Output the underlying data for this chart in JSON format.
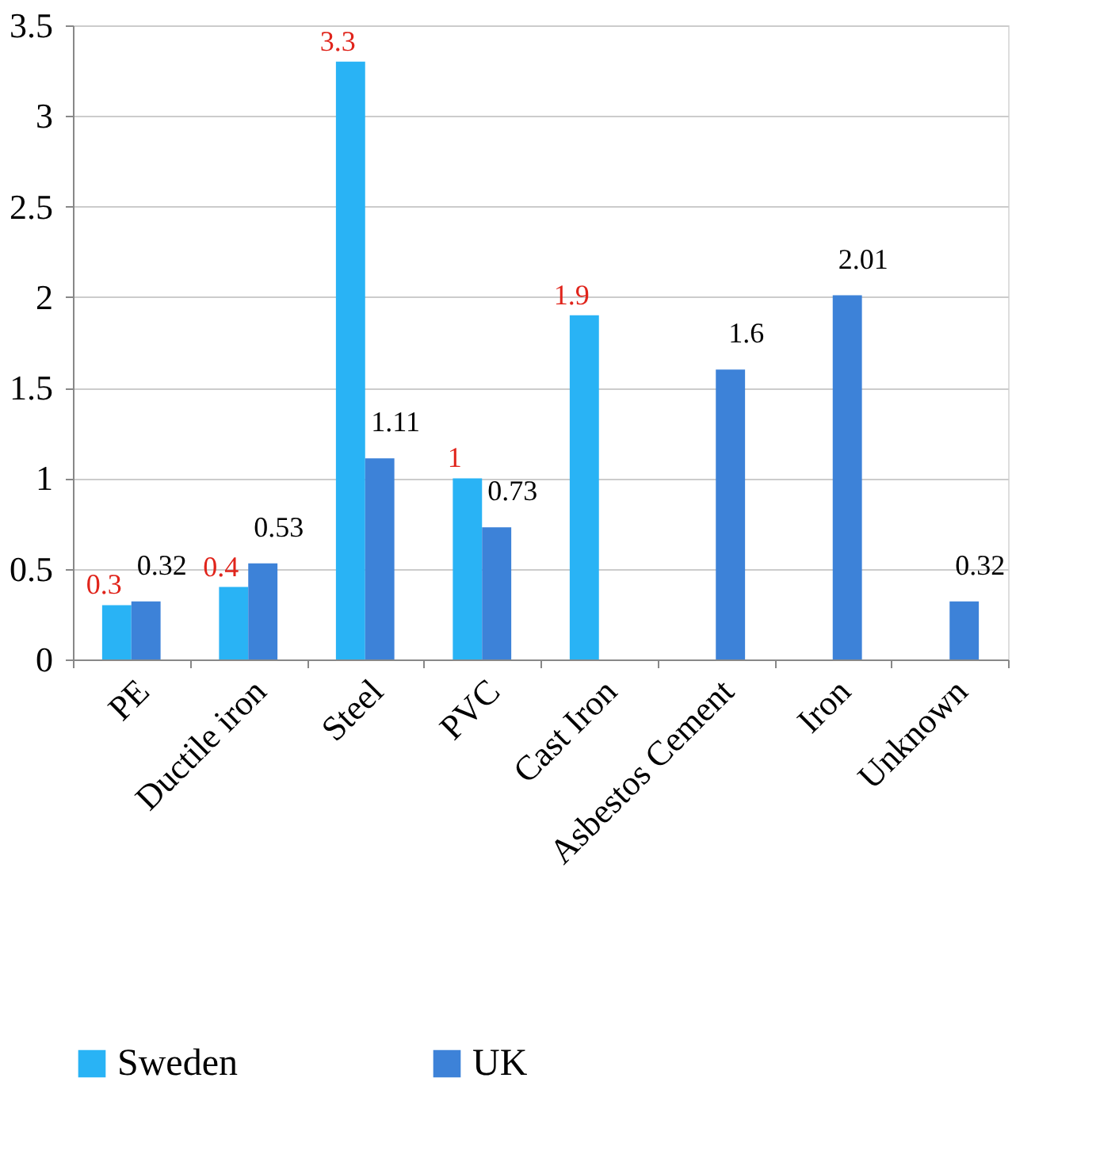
{
  "chart_data": {
    "type": "bar",
    "categories": [
      "PE",
      "Ductile iron",
      "Steel",
      "PVC",
      "Cast Iron",
      "Asbestos Cement",
      "Iron",
      "Unknown"
    ],
    "series": [
      {
        "name": "Sweden",
        "color": "#29b3f5",
        "values": [
          0.3,
          0.4,
          3.3,
          1,
          1.9,
          null,
          null,
          null
        ]
      },
      {
        "name": "UK",
        "color": "#3d82d8",
        "values": [
          0.32,
          0.53,
          1.11,
          0.73,
          null,
          1.6,
          2.01,
          0.32
        ]
      }
    ],
    "ylim": [
      0,
      3.5
    ],
    "yticks": [
      0,
      0.5,
      1,
      1.5,
      2,
      2.5,
      3,
      3.5
    ],
    "grid": "y",
    "legend": "bottom",
    "data_labels": true
  }
}
